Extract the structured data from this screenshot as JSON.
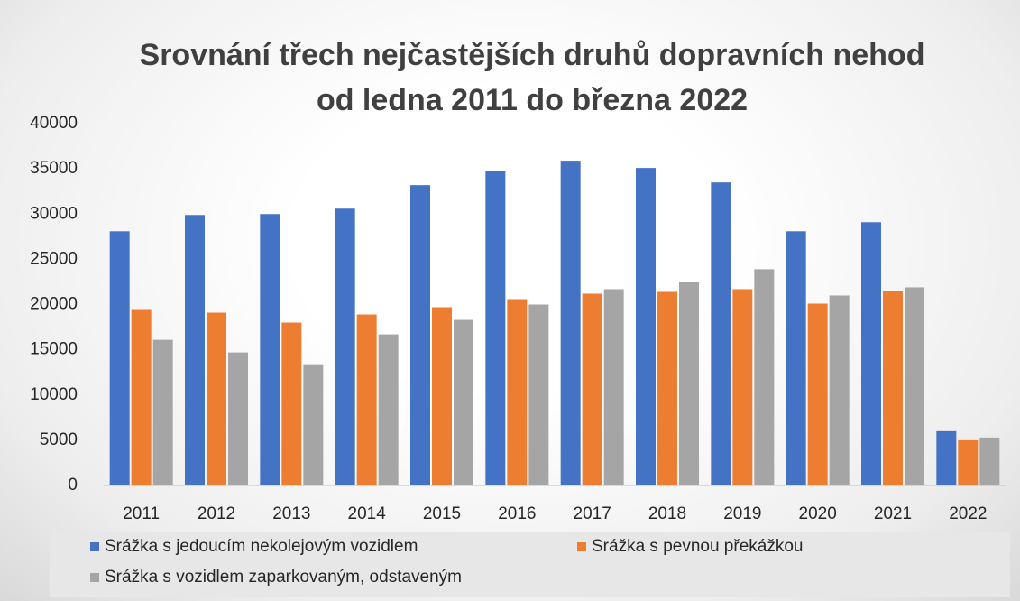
{
  "chart_data": {
    "type": "bar",
    "title": "Srovnání třech nejčastějších druhů dopravních nehod od ledna 2011 do března 2022",
    "categories": [
      "2011",
      "2012",
      "2013",
      "2014",
      "2015",
      "2016",
      "2017",
      "2018",
      "2019",
      "2020",
      "2021",
      "2022"
    ],
    "series": [
      {
        "name": "Srážka s jedoucím nekolejovým vozidlem",
        "color": "#4472c4",
        "values": [
          28100,
          29900,
          30000,
          30600,
          33200,
          34800,
          35900,
          35100,
          33500,
          28100,
          29100,
          6000
        ]
      },
      {
        "name": "Srážka s pevnou překážkou",
        "color": "#ed7d31",
        "values": [
          19500,
          19100,
          18000,
          18900,
          19700,
          20600,
          21200,
          21400,
          21700,
          20100,
          21500,
          5000
        ]
      },
      {
        "name": "Srážka s vozidlem zaparkovaným, odstaveným",
        "color": "#a5a5a5",
        "values": [
          16100,
          14700,
          13400,
          16700,
          18300,
          20000,
          21700,
          22500,
          23900,
          21000,
          21900,
          5300
        ]
      }
    ],
    "ylim": [
      0,
      40000
    ],
    "yticks": [
      0,
      5000,
      10000,
      15000,
      20000,
      25000,
      30000,
      35000,
      40000
    ],
    "grid": false,
    "legend": "bottom"
  }
}
